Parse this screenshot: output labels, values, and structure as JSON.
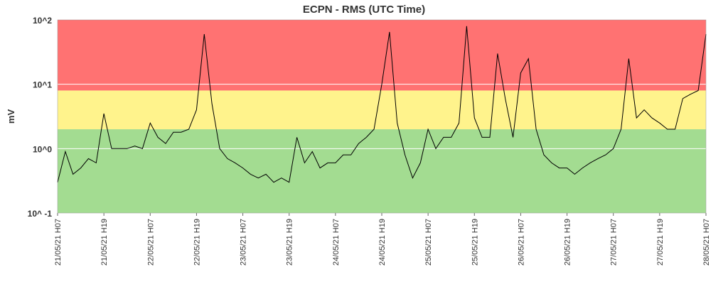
{
  "chart_data": {
    "type": "line",
    "title": "ECPN - RMS (UTC Time)",
    "y_label": "mV",
    "log_y": true,
    "grid": true,
    "ylim": [
      0.1,
      100
    ],
    "yticks": [
      {
        "value": 0.1,
        "label": "10^ -1"
      },
      {
        "value": 1,
        "label": "10^0"
      },
      {
        "value": 10,
        "label": "10^1"
      },
      {
        "value": 100,
        "label": "10^2"
      }
    ],
    "xlim": [
      "2021-05-21 07:00",
      "2021-05-28 07:00"
    ],
    "xticks": [
      {
        "value": "2021-05-21 07:00",
        "label": "21/05/21 H07"
      },
      {
        "value": "2021-05-21 19:00",
        "label": "21/05/21 H19"
      },
      {
        "value": "2021-05-22 07:00",
        "label": "22/05/21 H07"
      },
      {
        "value": "2021-05-22 19:00",
        "label": "22/05/21 H19"
      },
      {
        "value": "2021-05-23 07:00",
        "label": "23/05/21 H07"
      },
      {
        "value": "2021-05-23 19:00",
        "label": "23/05/21 H19"
      },
      {
        "value": "2021-05-24 07:00",
        "label": "24/05/21 H07"
      },
      {
        "value": "2021-05-24 19:00",
        "label": "24/05/21 H19"
      },
      {
        "value": "2021-05-25 07:00",
        "label": "25/05/21 H07"
      },
      {
        "value": "2021-05-25 19:00",
        "label": "25/05/21 H19"
      },
      {
        "value": "2021-05-26 07:00",
        "label": "26/05/21 H07"
      },
      {
        "value": "2021-05-26 19:00",
        "label": "26/05/21 H19"
      },
      {
        "value": "2021-05-27 07:00",
        "label": "27/05/21 H07"
      },
      {
        "value": "2021-05-27 19:00",
        "label": "27/05/21 H19"
      },
      {
        "value": "2021-05-28 07:00",
        "label": "28/05/21 H07"
      }
    ],
    "bands": [
      {
        "from": 0.1,
        "to": 2,
        "color": "#a3dc91"
      },
      {
        "from": 2,
        "to": 8,
        "color": "#fff38c"
      },
      {
        "from": 8,
        "to": 100,
        "color": "#ff7272"
      }
    ],
    "x": [
      "2021-05-21 07:00",
      "2021-05-21 09:00",
      "2021-05-21 11:00",
      "2021-05-21 13:00",
      "2021-05-21 15:00",
      "2021-05-21 17:00",
      "2021-05-21 19:00",
      "2021-05-21 21:00",
      "2021-05-21 23:00",
      "2021-05-22 01:00",
      "2021-05-22 03:00",
      "2021-05-22 05:00",
      "2021-05-22 07:00",
      "2021-05-22 09:00",
      "2021-05-22 11:00",
      "2021-05-22 13:00",
      "2021-05-22 15:00",
      "2021-05-22 17:00",
      "2021-05-22 19:00",
      "2021-05-22 21:00",
      "2021-05-22 23:00",
      "2021-05-23 01:00",
      "2021-05-23 03:00",
      "2021-05-23 05:00",
      "2021-05-23 07:00",
      "2021-05-23 09:00",
      "2021-05-23 11:00",
      "2021-05-23 13:00",
      "2021-05-23 15:00",
      "2021-05-23 17:00",
      "2021-05-23 19:00",
      "2021-05-23 21:00",
      "2021-05-23 23:00",
      "2021-05-24 01:00",
      "2021-05-24 03:00",
      "2021-05-24 05:00",
      "2021-05-24 07:00",
      "2021-05-24 09:00",
      "2021-05-24 11:00",
      "2021-05-24 13:00",
      "2021-05-24 15:00",
      "2021-05-24 17:00",
      "2021-05-24 19:00",
      "2021-05-24 21:00",
      "2021-05-24 23:00",
      "2021-05-25 01:00",
      "2021-05-25 03:00",
      "2021-05-25 05:00",
      "2021-05-25 07:00",
      "2021-05-25 09:00",
      "2021-05-25 11:00",
      "2021-05-25 13:00",
      "2021-05-25 15:00",
      "2021-05-25 17:00",
      "2021-05-25 19:00",
      "2021-05-25 21:00",
      "2021-05-25 23:00",
      "2021-05-26 01:00",
      "2021-05-26 03:00",
      "2021-05-26 05:00",
      "2021-05-26 07:00",
      "2021-05-26 09:00",
      "2021-05-26 11:00",
      "2021-05-26 13:00",
      "2021-05-26 15:00",
      "2021-05-26 17:00",
      "2021-05-26 19:00",
      "2021-05-26 21:00",
      "2021-05-26 23:00",
      "2021-05-27 01:00",
      "2021-05-27 03:00",
      "2021-05-27 05:00",
      "2021-05-27 07:00",
      "2021-05-27 09:00",
      "2021-05-27 11:00",
      "2021-05-27 13:00",
      "2021-05-27 15:00",
      "2021-05-27 17:00",
      "2021-05-27 19:00",
      "2021-05-27 21:00",
      "2021-05-27 23:00",
      "2021-05-28 01:00",
      "2021-05-28 03:00",
      "2021-05-28 05:00",
      "2021-05-28 07:00"
    ],
    "series": [
      {
        "color": "#000000",
        "values": [
          0.3,
          0.9,
          0.4,
          0.5,
          0.7,
          0.6,
          3.5,
          1.0,
          1.0,
          1.0,
          1.1,
          1.0,
          2.5,
          1.5,
          1.2,
          1.8,
          1.8,
          2.0,
          4,
          60,
          5,
          1.0,
          0.7,
          0.6,
          0.5,
          0.4,
          0.35,
          0.4,
          0.3,
          0.35,
          0.3,
          1.5,
          0.6,
          0.9,
          0.5,
          0.6,
          0.6,
          0.8,
          0.8,
          1.2,
          1.5,
          2.0,
          10,
          65,
          2.5,
          0.8,
          0.35,
          0.6,
          2.0,
          1.0,
          1.5,
          1.5,
          2.5,
          80,
          3.0,
          1.5,
          1.5,
          30,
          6,
          1.5,
          15,
          25,
          2.0,
          0.8,
          0.6,
          0.5,
          0.5,
          0.4,
          0.5,
          0.6,
          0.7,
          0.8,
          1.0,
          2.0,
          25,
          3.0,
          4.0,
          3.0,
          2.5,
          2.0,
          2.0,
          6,
          7,
          8,
          60
        ]
      }
    ]
  }
}
